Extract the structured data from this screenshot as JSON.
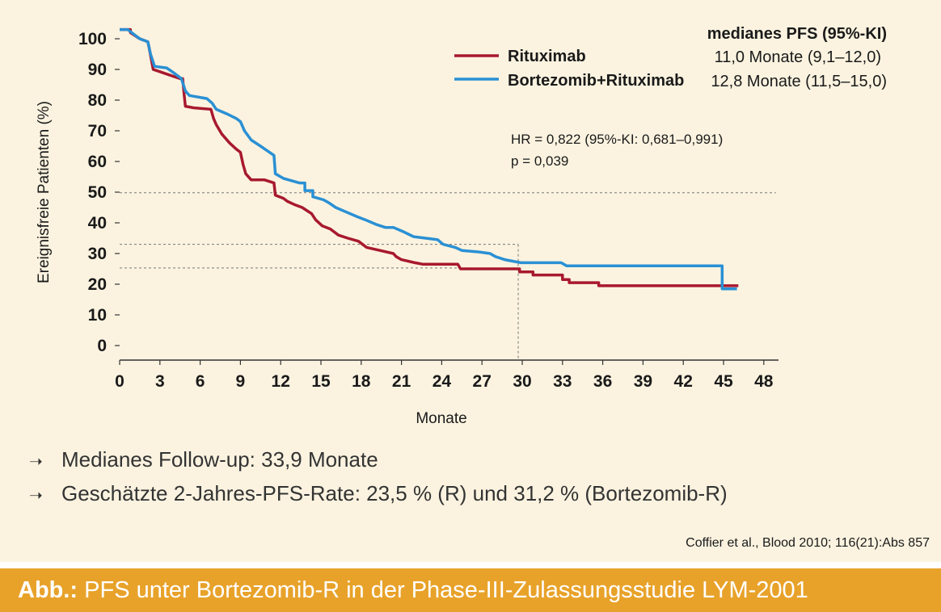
{
  "chart_data": {
    "type": "line",
    "subtype": "kaplan-meier-step",
    "xlabel": "Monate",
    "ylabel": "Ereignisfreie Patienten (%)",
    "xlim": [
      0,
      48
    ],
    "ylim": [
      0,
      100
    ],
    "xticks": [
      0,
      3,
      6,
      9,
      12,
      15,
      18,
      21,
      24,
      27,
      30,
      33,
      36,
      39,
      42,
      45,
      48
    ],
    "yticks": [
      0,
      10,
      20,
      30,
      40,
      50,
      60,
      70,
      80,
      90,
      100
    ],
    "grid": false,
    "legend_header": "medianes PFS (95%-KI)",
    "legend_position": "top-right",
    "series": [
      {
        "name": "Rituximab",
        "color": "#a8192e",
        "median_text": "11,0 Monate (9,1–12,0)",
        "points": [
          [
            0,
            103
          ],
          [
            0.8,
            103
          ],
          [
            0.8,
            102
          ],
          [
            1.5,
            100
          ],
          [
            2.1,
            99
          ],
          [
            2.2,
            97
          ],
          [
            2.5,
            90
          ],
          [
            3.5,
            88.5
          ],
          [
            4.5,
            87
          ],
          [
            4.7,
            87
          ],
          [
            4.8,
            82
          ],
          [
            4.9,
            78
          ],
          [
            5.5,
            77.5
          ],
          [
            6.8,
            77
          ],
          [
            7.0,
            74
          ],
          [
            7.2,
            72
          ],
          [
            7.6,
            69
          ],
          [
            8.2,
            66
          ],
          [
            8.7,
            64
          ],
          [
            9.0,
            63
          ],
          [
            9.2,
            59
          ],
          [
            9.4,
            56
          ],
          [
            9.8,
            54
          ],
          [
            10.8,
            54
          ],
          [
            11.5,
            53
          ],
          [
            11.6,
            49
          ],
          [
            12.2,
            48
          ],
          [
            12.5,
            47
          ],
          [
            13.0,
            46
          ],
          [
            13.6,
            45
          ],
          [
            14.3,
            43
          ],
          [
            14.6,
            41
          ],
          [
            15.1,
            39
          ],
          [
            15.7,
            38
          ],
          [
            16.3,
            36
          ],
          [
            17.0,
            35
          ],
          [
            17.8,
            34
          ],
          [
            18.4,
            32
          ],
          [
            19.4,
            31
          ],
          [
            20.4,
            30
          ],
          [
            20.6,
            29
          ],
          [
            21.0,
            28
          ],
          [
            22.0,
            27
          ],
          [
            22.6,
            26.5
          ],
          [
            25.2,
            26.5
          ],
          [
            25.4,
            25
          ],
          [
            29.8,
            25
          ],
          [
            29.8,
            24
          ],
          [
            30.8,
            24
          ],
          [
            30.8,
            23
          ],
          [
            33.0,
            23
          ],
          [
            33.0,
            21.5
          ],
          [
            33.5,
            21.5
          ],
          [
            33.5,
            20.5
          ],
          [
            35.7,
            20.5
          ],
          [
            35.7,
            19.5
          ],
          [
            46.1,
            19.5
          ]
        ]
      },
      {
        "name": "Bortezomib+Rituximab",
        "color": "#2a90d4",
        "median_text": "12,8 Monate (11,5–15,0)",
        "points": [
          [
            0,
            103
          ],
          [
            0.6,
            103
          ],
          [
            0.9,
            102
          ],
          [
            1.5,
            100
          ],
          [
            2.1,
            99
          ],
          [
            2.3,
            95
          ],
          [
            2.6,
            91
          ],
          [
            3.5,
            90.5
          ],
          [
            4.0,
            89
          ],
          [
            4.6,
            87
          ],
          [
            4.9,
            83
          ],
          [
            5.2,
            81.5
          ],
          [
            6.5,
            80.5
          ],
          [
            6.9,
            79
          ],
          [
            7.2,
            77
          ],
          [
            8.0,
            75.5
          ],
          [
            8.7,
            74
          ],
          [
            9.0,
            73
          ],
          [
            9.3,
            70
          ],
          [
            9.8,
            67
          ],
          [
            10.5,
            65
          ],
          [
            11.5,
            62
          ],
          [
            11.6,
            56
          ],
          [
            12.2,
            54.5
          ],
          [
            13.4,
            53
          ],
          [
            13.8,
            53
          ],
          [
            13.8,
            50.5
          ],
          [
            14.4,
            50.5
          ],
          [
            14.4,
            48.5
          ],
          [
            15.2,
            47.5
          ],
          [
            15.6,
            46.5
          ],
          [
            16.1,
            45
          ],
          [
            16.9,
            43.5
          ],
          [
            17.7,
            42
          ],
          [
            18.3,
            41
          ],
          [
            19.1,
            39.5
          ],
          [
            19.8,
            38.5
          ],
          [
            20.4,
            38.5
          ],
          [
            21.2,
            37
          ],
          [
            21.9,
            35.5
          ],
          [
            22.8,
            35
          ],
          [
            23.7,
            34.5
          ],
          [
            24.1,
            33
          ],
          [
            25.0,
            32
          ],
          [
            25.5,
            31
          ],
          [
            26.8,
            30.5
          ],
          [
            27.6,
            30
          ],
          [
            28.0,
            29
          ],
          [
            28.7,
            28
          ],
          [
            29.9,
            27
          ],
          [
            32.9,
            27
          ],
          [
            33.3,
            26
          ],
          [
            44.9,
            26
          ],
          [
            44.9,
            18.5
          ],
          [
            46.0,
            18.5
          ]
        ]
      }
    ],
    "annotation_lines": {
      "horizontal_y": [
        49.8,
        33.0,
        25.3
      ],
      "vertical_x": 29.7,
      "vertical_top_y": 33.0
    },
    "annotation_text": [
      "HR = 0,822 (95%-KI: 0,681–0,991)",
      "p = 0,039"
    ]
  },
  "bullets": [
    "Medianes Follow-up: 33,9 Monate",
    "Geschätzte 2-Jahres-PFS-Rate: 23,5 % (R) und 31,2 % (Bortezomib-R)"
  ],
  "citation": "Coffier et al., Blood 2010; 116(21):Abs 857",
  "footer": {
    "prefix": "Abb.:",
    "caption": "PFS unter Bortezomib-R in der Phase-III-Zulassungsstudie LYM-2001"
  },
  "colors": {
    "background": "#fbf3e0",
    "footer_bar": "#e8a22a",
    "rituximab": "#a8192e",
    "bortezomib_rituximab": "#2a90d4"
  }
}
